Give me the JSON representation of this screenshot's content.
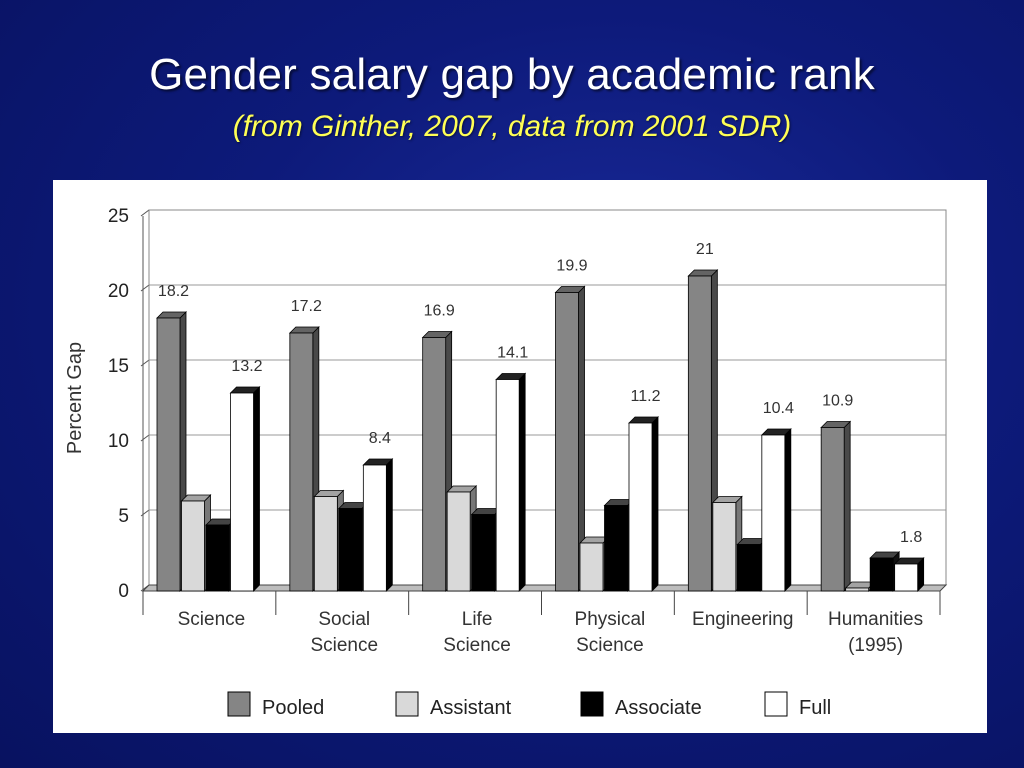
{
  "slide": {
    "title": "Gender salary gap by academic rank",
    "subtitle": "(from Ginther, 2007, data from 2001 SDR)"
  },
  "colors": {
    "background": "#0d1a7a",
    "title": "#ffffff",
    "subtitle": "#ffff55",
    "Pooled": "#858585",
    "Assistant": "#d9d9d9",
    "Associate": "#000000",
    "Full": "#ffffff"
  },
  "chart_data": {
    "type": "bar",
    "ylabel": "Percent Gap",
    "xlabel": "",
    "ylim": [
      0,
      25
    ],
    "yticks": [
      "0",
      "5",
      "10",
      "15",
      "20",
      "25"
    ],
    "grid": true,
    "legend_position": "bottom",
    "categories": [
      [
        "Science"
      ],
      [
        "Social",
        "Science"
      ],
      [
        "Life",
        "Science"
      ],
      [
        "Physical",
        "Science"
      ],
      [
        "Engineering"
      ],
      [
        "Humanities",
        "(1995)"
      ]
    ],
    "series": [
      {
        "name": "Pooled",
        "values": [
          18.2,
          17.2,
          16.9,
          19.9,
          21.0,
          10.9
        ]
      },
      {
        "name": "Assistant",
        "values": [
          6.0,
          6.3,
          6.6,
          3.2,
          5.9,
          0.2
        ]
      },
      {
        "name": "Associate",
        "values": [
          4.4,
          5.5,
          5.1,
          5.7,
          3.1,
          2.2
        ]
      },
      {
        "name": "Full",
        "values": [
          13.2,
          8.4,
          14.1,
          11.2,
          10.4,
          1.8
        ]
      }
    ],
    "data_labels": {
      "Pooled": [
        "18.2",
        "17.2",
        "16.9",
        "19.9",
        "21",
        "10.9"
      ],
      "Full": [
        "13.2",
        "8.4",
        "14.1",
        "11.2",
        "10.4",
        "1.8"
      ]
    }
  }
}
